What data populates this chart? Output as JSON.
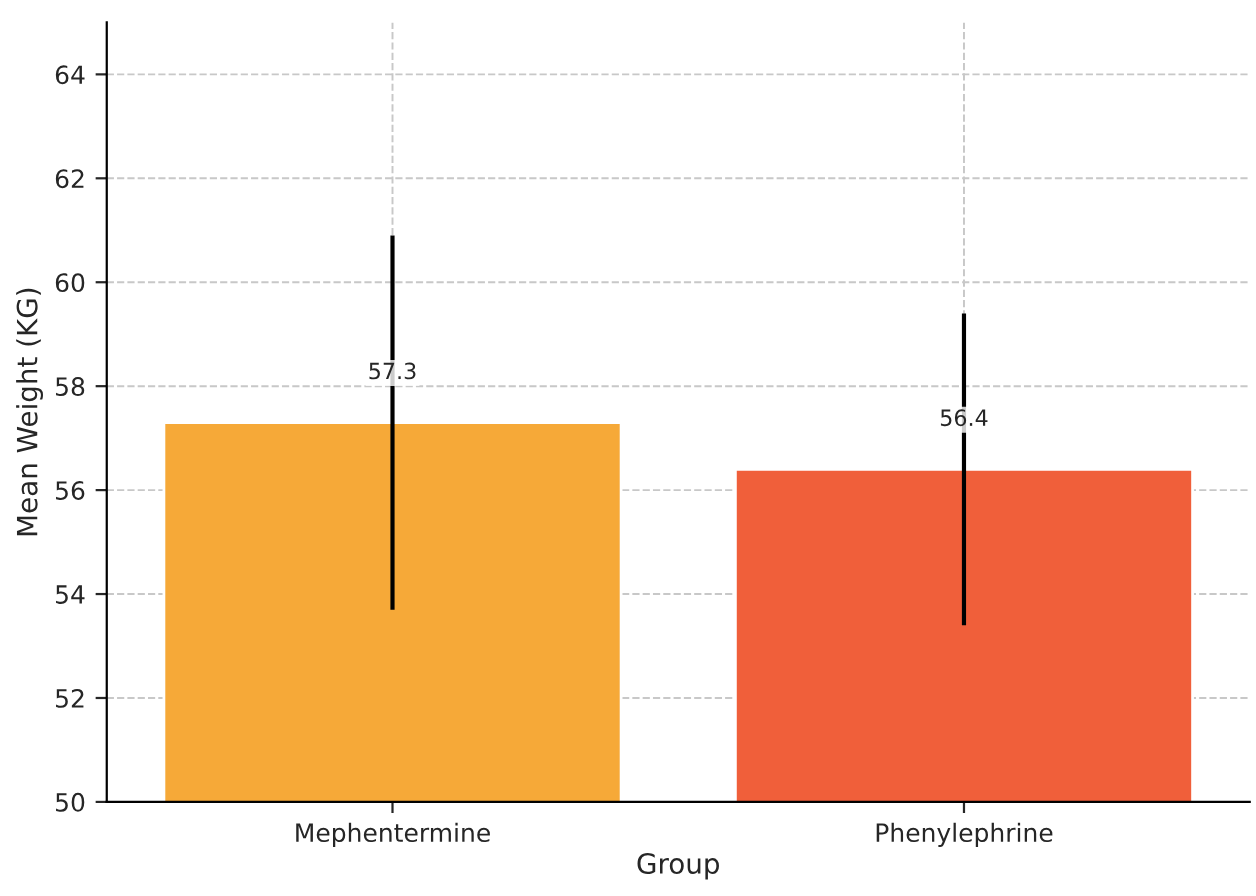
{
  "chart_data": {
    "type": "bar",
    "xlabel": "Group",
    "ylabel": "Mean Weight (KG)",
    "categories": [
      "Mephentermine",
      "Phenylephrine"
    ],
    "values": [
      57.3,
      56.4
    ],
    "colors": [
      "#f6a938",
      "#f05f3a"
    ],
    "errors": [
      3.6,
      3.0
    ],
    "ylim": [
      50,
      65
    ],
    "yticks": [
      50,
      52,
      54,
      56,
      58,
      60,
      62,
      64
    ],
    "grid": true,
    "data_labels": true
  }
}
